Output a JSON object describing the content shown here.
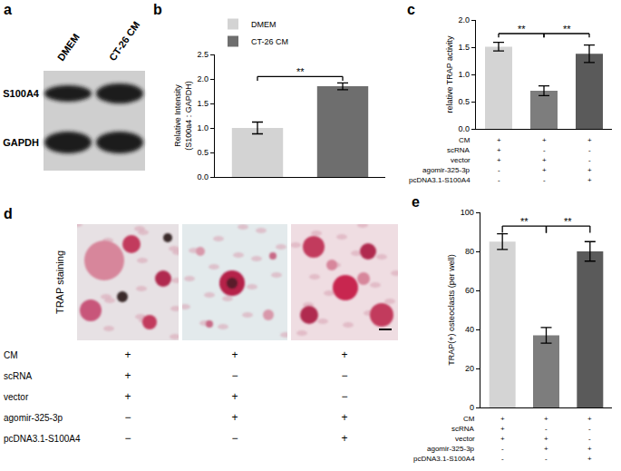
{
  "chart_data": [
    {
      "type": "bar",
      "title": "b",
      "categories": [
        "DMEM",
        "CT-26 CM"
      ],
      "values": [
        1.0,
        1.85
      ],
      "errors": [
        0.12,
        0.07
      ],
      "colors": [
        "#d3d3d3",
        "#6e6e6e"
      ],
      "y_label": "Relative Intensity\n(S100a4 : GAPDH)",
      "ylim": [
        0,
        2.5
      ],
      "yticks": [
        {
          "value": 0,
          "label": "0.0"
        },
        0.5,
        {
          "value": 1,
          "label": "1.0"
        },
        1.5,
        {
          "value": 2,
          "label": "2.0"
        },
        2.5
      ],
      "legend": "top-left",
      "tick_labels": "y",
      "significance": [
        {
          "from": 0,
          "to": 1,
          "y": 2.05,
          "label": "**"
        }
      ]
    },
    {
      "type": "bar",
      "title": "c",
      "categories": [
        null,
        null,
        null
      ],
      "values": [
        1.51,
        0.7,
        1.38
      ],
      "errors": [
        0.08,
        0.09,
        0.16
      ],
      "colors": [
        "#d4d4d4",
        "#7d7d7d",
        "#5a5a5a"
      ],
      "y_label": "relative TRAP activity",
      "ylim": [
        0,
        2
      ],
      "yticks": [
        {
          "value": 0,
          "label": "0.0"
        },
        0.5,
        {
          "value": 1,
          "label": "1.0"
        },
        1.5,
        {
          "value": 2,
          "label": "2.0"
        }
      ],
      "tick_labels": "y",
      "significance": [
        {
          "from": 0,
          "to": 1,
          "y": 1.75,
          "label": "**"
        },
        {
          "from": 1,
          "to": 2,
          "y": 1.75,
          "label": "**"
        }
      ],
      "conditions": [
        {
          "label": "CM",
          "marks": [
            "+",
            "+",
            "+"
          ]
        },
        {
          "label": "scRNA",
          "marks": [
            "+",
            "-",
            "-"
          ]
        },
        {
          "label": "vector",
          "marks": [
            "+",
            "+",
            "-"
          ]
        },
        {
          "label": "agomir-325-3p",
          "marks": [
            "-",
            "+",
            "+"
          ]
        },
        {
          "label": "pcDNA3.1-S100A4",
          "marks": [
            "-",
            "-",
            "+"
          ]
        }
      ]
    },
    {
      "type": "bar",
      "title": "e",
      "categories": [
        null,
        null,
        null
      ],
      "values": [
        85,
        37,
        80
      ],
      "errors": [
        4,
        4,
        5
      ],
      "colors": [
        "#d4d4d4",
        "#7d7d7d",
        "#5a5a5a"
      ],
      "y_label": "TRAP(+) osteoclasts (per well)",
      "ylim": [
        0,
        100
      ],
      "yticks": [
        0,
        20,
        40,
        60,
        80,
        100
      ],
      "tick_labels": "y",
      "significance": [
        {
          "from": 0,
          "to": 1,
          "y": 93,
          "label": "**"
        },
        {
          "from": 1,
          "to": 2,
          "y": 93,
          "label": "**"
        }
      ],
      "conditions": [
        {
          "label": "CM",
          "marks": [
            "+",
            "+",
            "+"
          ]
        },
        {
          "label": "scRNA",
          "marks": [
            "+",
            "-",
            "-"
          ]
        },
        {
          "label": "vector",
          "marks": [
            "+",
            "+",
            "-"
          ]
        },
        {
          "label": "agomir-325-3p",
          "marks": [
            "-",
            "+",
            "+"
          ]
        },
        {
          "label": "pcDNA3.1-S100A4",
          "marks": [
            "-",
            "-",
            "+"
          ]
        }
      ]
    }
  ],
  "panel_a": {
    "title": "a",
    "columns": [
      "DMEM",
      "CT-26 CM"
    ],
    "rows": [
      "S100A4",
      "GAPDH"
    ]
  },
  "panel_d": {
    "title": "d",
    "side_label": "TRAP staining",
    "conditions": [
      {
        "label": "CM",
        "marks": [
          "+",
          "+",
          "+"
        ]
      },
      {
        "label": "scRNA",
        "marks": [
          "+",
          "−",
          "−"
        ]
      },
      {
        "label": "vector",
        "marks": [
          "+",
          "+",
          "−"
        ]
      },
      {
        "label": "agomir-325-3p",
        "marks": [
          "−",
          "+",
          "+"
        ]
      },
      {
        "label": "pcDNA3.1-S100A4",
        "marks": [
          "−",
          "−",
          "+"
        ]
      }
    ]
  }
}
